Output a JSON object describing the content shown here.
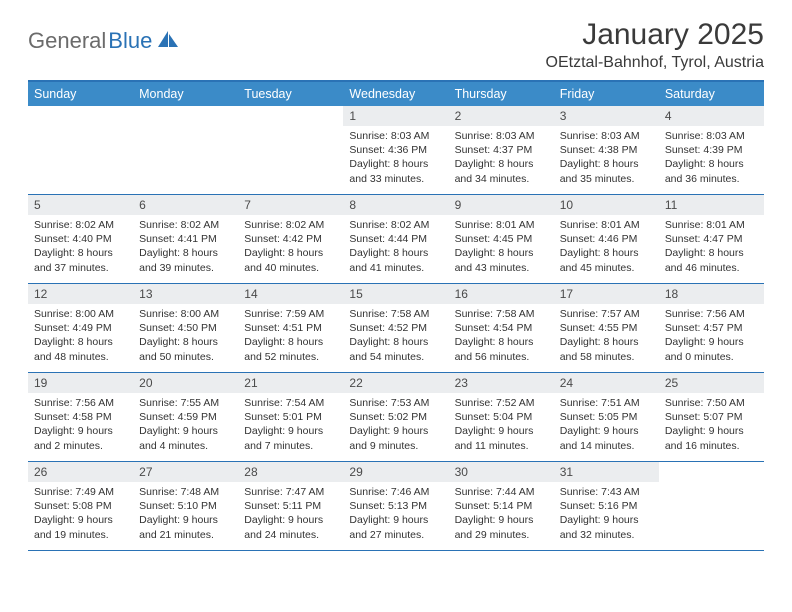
{
  "brand": {
    "part1": "General",
    "part2": "Blue"
  },
  "title": "January 2025",
  "location": "OEtztal-Bahnhof, Tyrol, Austria",
  "colors": {
    "header_bg": "#3b8bc8",
    "border": "#2a72b5",
    "daynum_bg": "#ebedef",
    "text": "#333333",
    "title_text": "#3a3a3a",
    "logo_gray": "#6b6b6b"
  },
  "day_names": [
    "Sunday",
    "Monday",
    "Tuesday",
    "Wednesday",
    "Thursday",
    "Friday",
    "Saturday"
  ],
  "weeks": [
    [
      null,
      null,
      null,
      {
        "n": "1",
        "sr": "8:03 AM",
        "ss": "4:36 PM",
        "dl": "8 hours and 33 minutes."
      },
      {
        "n": "2",
        "sr": "8:03 AM",
        "ss": "4:37 PM",
        "dl": "8 hours and 34 minutes."
      },
      {
        "n": "3",
        "sr": "8:03 AM",
        "ss": "4:38 PM",
        "dl": "8 hours and 35 minutes."
      },
      {
        "n": "4",
        "sr": "8:03 AM",
        "ss": "4:39 PM",
        "dl": "8 hours and 36 minutes."
      }
    ],
    [
      {
        "n": "5",
        "sr": "8:02 AM",
        "ss": "4:40 PM",
        "dl": "8 hours and 37 minutes."
      },
      {
        "n": "6",
        "sr": "8:02 AM",
        "ss": "4:41 PM",
        "dl": "8 hours and 39 minutes."
      },
      {
        "n": "7",
        "sr": "8:02 AM",
        "ss": "4:42 PM",
        "dl": "8 hours and 40 minutes."
      },
      {
        "n": "8",
        "sr": "8:02 AM",
        "ss": "4:44 PM",
        "dl": "8 hours and 41 minutes."
      },
      {
        "n": "9",
        "sr": "8:01 AM",
        "ss": "4:45 PM",
        "dl": "8 hours and 43 minutes."
      },
      {
        "n": "10",
        "sr": "8:01 AM",
        "ss": "4:46 PM",
        "dl": "8 hours and 45 minutes."
      },
      {
        "n": "11",
        "sr": "8:01 AM",
        "ss": "4:47 PM",
        "dl": "8 hours and 46 minutes."
      }
    ],
    [
      {
        "n": "12",
        "sr": "8:00 AM",
        "ss": "4:49 PM",
        "dl": "8 hours and 48 minutes."
      },
      {
        "n": "13",
        "sr": "8:00 AM",
        "ss": "4:50 PM",
        "dl": "8 hours and 50 minutes."
      },
      {
        "n": "14",
        "sr": "7:59 AM",
        "ss": "4:51 PM",
        "dl": "8 hours and 52 minutes."
      },
      {
        "n": "15",
        "sr": "7:58 AM",
        "ss": "4:52 PM",
        "dl": "8 hours and 54 minutes."
      },
      {
        "n": "16",
        "sr": "7:58 AM",
        "ss": "4:54 PM",
        "dl": "8 hours and 56 minutes."
      },
      {
        "n": "17",
        "sr": "7:57 AM",
        "ss": "4:55 PM",
        "dl": "8 hours and 58 minutes."
      },
      {
        "n": "18",
        "sr": "7:56 AM",
        "ss": "4:57 PM",
        "dl": "9 hours and 0 minutes."
      }
    ],
    [
      {
        "n": "19",
        "sr": "7:56 AM",
        "ss": "4:58 PM",
        "dl": "9 hours and 2 minutes."
      },
      {
        "n": "20",
        "sr": "7:55 AM",
        "ss": "4:59 PM",
        "dl": "9 hours and 4 minutes."
      },
      {
        "n": "21",
        "sr": "7:54 AM",
        "ss": "5:01 PM",
        "dl": "9 hours and 7 minutes."
      },
      {
        "n": "22",
        "sr": "7:53 AM",
        "ss": "5:02 PM",
        "dl": "9 hours and 9 minutes."
      },
      {
        "n": "23",
        "sr": "7:52 AM",
        "ss": "5:04 PM",
        "dl": "9 hours and 11 minutes."
      },
      {
        "n": "24",
        "sr": "7:51 AM",
        "ss": "5:05 PM",
        "dl": "9 hours and 14 minutes."
      },
      {
        "n": "25",
        "sr": "7:50 AM",
        "ss": "5:07 PM",
        "dl": "9 hours and 16 minutes."
      }
    ],
    [
      {
        "n": "26",
        "sr": "7:49 AM",
        "ss": "5:08 PM",
        "dl": "9 hours and 19 minutes."
      },
      {
        "n": "27",
        "sr": "7:48 AM",
        "ss": "5:10 PM",
        "dl": "9 hours and 21 minutes."
      },
      {
        "n": "28",
        "sr": "7:47 AM",
        "ss": "5:11 PM",
        "dl": "9 hours and 24 minutes."
      },
      {
        "n": "29",
        "sr": "7:46 AM",
        "ss": "5:13 PM",
        "dl": "9 hours and 27 minutes."
      },
      {
        "n": "30",
        "sr": "7:44 AM",
        "ss": "5:14 PM",
        "dl": "9 hours and 29 minutes."
      },
      {
        "n": "31",
        "sr": "7:43 AM",
        "ss": "5:16 PM",
        "dl": "9 hours and 32 minutes."
      },
      null
    ]
  ],
  "labels": {
    "sunrise": "Sunrise: ",
    "sunset": "Sunset: ",
    "daylight": "Daylight: "
  }
}
